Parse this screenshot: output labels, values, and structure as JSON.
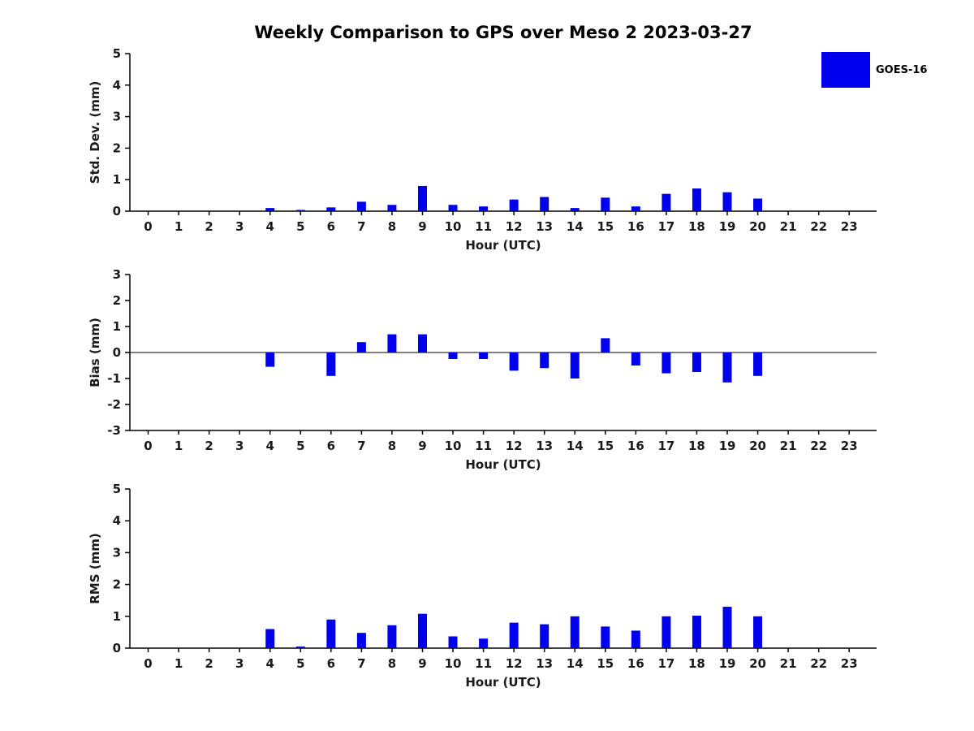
{
  "title": "Weekly Comparison to GPS over Meso 2 2023-03-27",
  "legend": {
    "label": "GOES-16",
    "color": "#0000EE"
  },
  "chart_data": [
    {
      "type": "bar",
      "name": "std-dev",
      "ylabel": "Std. Dev. (mm)",
      "xlabel": "Hour (UTC)",
      "ylim": [
        0,
        5
      ],
      "yticks": [
        0,
        1,
        2,
        3,
        4,
        5
      ],
      "grid": false,
      "legend_position": "top-right",
      "categories": [
        "0",
        "1",
        "2",
        "3",
        "4",
        "5",
        "6",
        "7",
        "8",
        "9",
        "10",
        "11",
        "12",
        "13",
        "14",
        "15",
        "16",
        "17",
        "18",
        "19",
        "20",
        "21",
        "22",
        "23"
      ],
      "values": [
        0,
        0,
        0,
        0,
        0.1,
        0.04,
        0.12,
        0.3,
        0.2,
        0.8,
        0.2,
        0.15,
        0.37,
        0.45,
        0.1,
        0.43,
        0.15,
        0.55,
        0.72,
        0.6,
        0.4,
        0,
        0,
        0
      ]
    },
    {
      "type": "bar",
      "name": "bias",
      "ylabel": "Bias (mm)",
      "xlabel": "Hour (UTC)",
      "ylim": [
        -3,
        3
      ],
      "yticks": [
        -3,
        -2,
        -1,
        0,
        1,
        2,
        3
      ],
      "grid": false,
      "zero_line": true,
      "categories": [
        "0",
        "1",
        "2",
        "3",
        "4",
        "5",
        "6",
        "7",
        "8",
        "9",
        "10",
        "11",
        "12",
        "13",
        "14",
        "15",
        "16",
        "17",
        "18",
        "19",
        "20",
        "21",
        "22",
        "23"
      ],
      "values": [
        0,
        0,
        0,
        0,
        -0.55,
        0,
        -0.9,
        0.4,
        0.7,
        0.7,
        -0.25,
        -0.25,
        -0.7,
        -0.6,
        -1.0,
        0.55,
        -0.5,
        -0.8,
        -0.75,
        -1.15,
        -0.9,
        0,
        0,
        0
      ]
    },
    {
      "type": "bar",
      "name": "rms",
      "ylabel": "RMS (mm)",
      "xlabel": "Hour (UTC)",
      "ylim": [
        0,
        5
      ],
      "yticks": [
        0,
        1,
        2,
        3,
        4,
        5
      ],
      "grid": false,
      "categories": [
        "0",
        "1",
        "2",
        "3",
        "4",
        "5",
        "6",
        "7",
        "8",
        "9",
        "10",
        "11",
        "12",
        "13",
        "14",
        "15",
        "16",
        "17",
        "18",
        "19",
        "20",
        "21",
        "22",
        "23"
      ],
      "values": [
        0,
        0,
        0,
        0,
        0.6,
        0.05,
        0.9,
        0.48,
        0.72,
        1.08,
        0.37,
        0.3,
        0.8,
        0.75,
        1.0,
        0.68,
        0.55,
        1.0,
        1.02,
        1.3,
        1.0,
        0,
        0,
        0
      ]
    }
  ]
}
